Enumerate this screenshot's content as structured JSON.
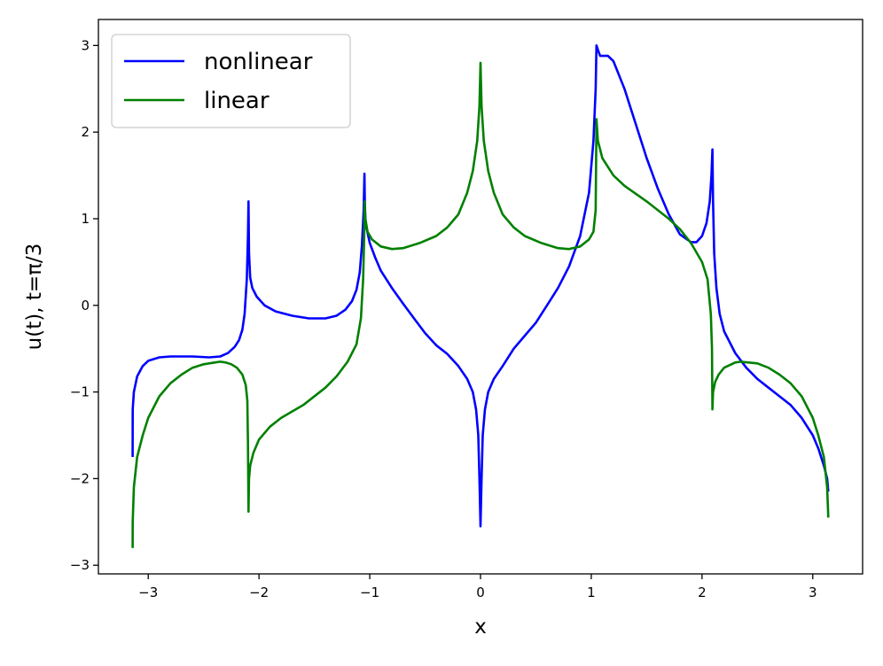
{
  "chart_data": {
    "type": "line",
    "xlabel": "x",
    "ylabel": "u(t), t=π/3",
    "xlim": [
      -3.45,
      3.45
    ],
    "ylim": [
      -3.1,
      3.3
    ],
    "xticks": [
      -3,
      -2,
      -1,
      0,
      1,
      2,
      3
    ],
    "yticks": [
      -3,
      -2,
      -1,
      0,
      1,
      2,
      3
    ],
    "xtick_labels": [
      "−3",
      "−2",
      "−1",
      "0",
      "1",
      "2",
      "3"
    ],
    "ytick_labels": [
      "−3",
      "−2",
      "−1",
      "0",
      "1",
      "2",
      "3"
    ],
    "grid": false,
    "legend": {
      "position": "top-left",
      "entries": [
        {
          "name": "nonlinear",
          "color": "#0000ff"
        },
        {
          "name": "linear",
          "color": "#008000"
        }
      ]
    },
    "series": [
      {
        "name": "nonlinear",
        "color": "#0000ff",
        "points": [
          [
            -3.141,
            -1.75
          ],
          [
            -3.14,
            -1.2
          ],
          [
            -3.13,
            -1.0
          ],
          [
            -3.1,
            -0.82
          ],
          [
            -3.05,
            -0.7
          ],
          [
            -3.0,
            -0.64
          ],
          [
            -2.9,
            -0.6
          ],
          [
            -2.8,
            -0.59
          ],
          [
            -2.6,
            -0.59
          ],
          [
            -2.45,
            -0.6
          ],
          [
            -2.35,
            -0.59
          ],
          [
            -2.28,
            -0.55
          ],
          [
            -2.22,
            -0.48
          ],
          [
            -2.18,
            -0.4
          ],
          [
            -2.15,
            -0.28
          ],
          [
            -2.13,
            -0.1
          ],
          [
            -2.11,
            0.3
          ],
          [
            -2.1,
            0.8
          ],
          [
            -2.095,
            1.2
          ],
          [
            -2.09,
            0.6
          ],
          [
            -2.08,
            0.32
          ],
          [
            -2.06,
            0.2
          ],
          [
            -2.02,
            0.1
          ],
          [
            -1.95,
            0.0
          ],
          [
            -1.85,
            -0.07
          ],
          [
            -1.7,
            -0.12
          ],
          [
            -1.55,
            -0.15
          ],
          [
            -1.4,
            -0.15
          ],
          [
            -1.3,
            -0.12
          ],
          [
            -1.22,
            -0.05
          ],
          [
            -1.16,
            0.05
          ],
          [
            -1.12,
            0.18
          ],
          [
            -1.09,
            0.38
          ],
          [
            -1.07,
            0.7
          ],
          [
            -1.055,
            1.1
          ],
          [
            -1.048,
            1.52
          ],
          [
            -1.045,
            1.2
          ],
          [
            -1.04,
            1.0
          ],
          [
            -1.03,
            0.9
          ],
          [
            -1.0,
            0.72
          ],
          [
            -0.95,
            0.55
          ],
          [
            -0.9,
            0.4
          ],
          [
            -0.8,
            0.2
          ],
          [
            -0.7,
            0.02
          ],
          [
            -0.6,
            -0.15
          ],
          [
            -0.5,
            -0.32
          ],
          [
            -0.4,
            -0.46
          ],
          [
            -0.3,
            -0.56
          ],
          [
            -0.2,
            -0.7
          ],
          [
            -0.12,
            -0.85
          ],
          [
            -0.07,
            -1.0
          ],
          [
            -0.04,
            -1.2
          ],
          [
            -0.02,
            -1.5
          ],
          [
            -0.01,
            -2.0
          ],
          [
            0.0,
            -2.55
          ],
          [
            0.01,
            -2.0
          ],
          [
            0.02,
            -1.5
          ],
          [
            0.04,
            -1.2
          ],
          [
            0.07,
            -1.0
          ],
          [
            0.12,
            -0.85
          ],
          [
            0.2,
            -0.7
          ],
          [
            0.3,
            -0.5
          ],
          [
            0.4,
            -0.35
          ],
          [
            0.5,
            -0.2
          ],
          [
            0.6,
            0.0
          ],
          [
            0.7,
            0.2
          ],
          [
            0.8,
            0.45
          ],
          [
            0.9,
            0.8
          ],
          [
            0.98,
            1.3
          ],
          [
            1.02,
            1.9
          ],
          [
            1.04,
            2.5
          ],
          [
            1.047,
            3.0
          ],
          [
            1.06,
            2.95
          ],
          [
            1.08,
            2.88
          ],
          [
            1.15,
            2.88
          ],
          [
            1.2,
            2.82
          ],
          [
            1.3,
            2.5
          ],
          [
            1.4,
            2.1
          ],
          [
            1.5,
            1.7
          ],
          [
            1.6,
            1.35
          ],
          [
            1.7,
            1.05
          ],
          [
            1.8,
            0.82
          ],
          [
            1.9,
            0.73
          ],
          [
            1.95,
            0.73
          ],
          [
            2.0,
            0.8
          ],
          [
            2.04,
            0.95
          ],
          [
            2.07,
            1.2
          ],
          [
            2.085,
            1.5
          ],
          [
            2.094,
            1.8
          ],
          [
            2.1,
            1.2
          ],
          [
            2.11,
            0.6
          ],
          [
            2.13,
            0.2
          ],
          [
            2.16,
            -0.1
          ],
          [
            2.2,
            -0.3
          ],
          [
            2.3,
            -0.55
          ],
          [
            2.4,
            -0.72
          ],
          [
            2.5,
            -0.85
          ],
          [
            2.6,
            -0.95
          ],
          [
            2.7,
            -1.05
          ],
          [
            2.8,
            -1.15
          ],
          [
            2.9,
            -1.3
          ],
          [
            3.0,
            -1.5
          ],
          [
            3.05,
            -1.65
          ],
          [
            3.1,
            -1.85
          ],
          [
            3.13,
            -2.0
          ],
          [
            3.14,
            -2.15
          ]
        ]
      },
      {
        "name": "linear",
        "color": "#008000",
        "points": [
          [
            -3.141,
            -2.8
          ],
          [
            -3.14,
            -2.5
          ],
          [
            -3.13,
            -2.1
          ],
          [
            -3.1,
            -1.75
          ],
          [
            -3.05,
            -1.5
          ],
          [
            -3.0,
            -1.3
          ],
          [
            -2.9,
            -1.05
          ],
          [
            -2.8,
            -0.9
          ],
          [
            -2.7,
            -0.8
          ],
          [
            -2.6,
            -0.72
          ],
          [
            -2.5,
            -0.68
          ],
          [
            -2.4,
            -0.66
          ],
          [
            -2.35,
            -0.65
          ],
          [
            -2.3,
            -0.66
          ],
          [
            -2.25,
            -0.68
          ],
          [
            -2.2,
            -0.72
          ],
          [
            -2.15,
            -0.8
          ],
          [
            -2.12,
            -0.92
          ],
          [
            -2.105,
            -1.1
          ],
          [
            -2.1,
            -1.6
          ],
          [
            -2.095,
            -2.38
          ],
          [
            -2.09,
            -2.0
          ],
          [
            -2.08,
            -1.85
          ],
          [
            -2.05,
            -1.7
          ],
          [
            -2.0,
            -1.55
          ],
          [
            -1.9,
            -1.4
          ],
          [
            -1.8,
            -1.3
          ],
          [
            -1.6,
            -1.15
          ],
          [
            -1.4,
            -0.95
          ],
          [
            -1.3,
            -0.82
          ],
          [
            -1.2,
            -0.65
          ],
          [
            -1.12,
            -0.45
          ],
          [
            -1.08,
            -0.15
          ],
          [
            -1.06,
            0.3
          ],
          [
            -1.05,
            0.8
          ],
          [
            -1.047,
            1.2
          ],
          [
            -1.04,
            1.0
          ],
          [
            -1.02,
            0.85
          ],
          [
            -0.98,
            0.76
          ],
          [
            -0.9,
            0.68
          ],
          [
            -0.8,
            0.65
          ],
          [
            -0.7,
            0.66
          ],
          [
            -0.55,
            0.72
          ],
          [
            -0.4,
            0.8
          ],
          [
            -0.3,
            0.9
          ],
          [
            -0.2,
            1.05
          ],
          [
            -0.12,
            1.3
          ],
          [
            -0.07,
            1.55
          ],
          [
            -0.03,
            1.9
          ],
          [
            -0.01,
            2.3
          ],
          [
            0.0,
            2.8
          ],
          [
            0.01,
            2.3
          ],
          [
            0.03,
            1.9
          ],
          [
            0.07,
            1.55
          ],
          [
            0.12,
            1.3
          ],
          [
            0.2,
            1.05
          ],
          [
            0.3,
            0.9
          ],
          [
            0.4,
            0.8
          ],
          [
            0.55,
            0.72
          ],
          [
            0.7,
            0.66
          ],
          [
            0.8,
            0.65
          ],
          [
            0.9,
            0.68
          ],
          [
            0.98,
            0.76
          ],
          [
            1.02,
            0.85
          ],
          [
            1.04,
            1.1
          ],
          [
            1.047,
            2.15
          ],
          [
            1.06,
            1.9
          ],
          [
            1.1,
            1.7
          ],
          [
            1.2,
            1.5
          ],
          [
            1.3,
            1.38
          ],
          [
            1.5,
            1.2
          ],
          [
            1.7,
            1.0
          ],
          [
            1.8,
            0.88
          ],
          [
            1.9,
            0.72
          ],
          [
            2.0,
            0.5
          ],
          [
            2.05,
            0.3
          ],
          [
            2.08,
            -0.1
          ],
          [
            2.09,
            -0.5
          ],
          [
            2.094,
            -1.2
          ],
          [
            2.1,
            -1.0
          ],
          [
            2.12,
            -0.88
          ],
          [
            2.15,
            -0.8
          ],
          [
            2.2,
            -0.72
          ],
          [
            2.3,
            -0.66
          ],
          [
            2.35,
            -0.65
          ],
          [
            2.5,
            -0.67
          ],
          [
            2.6,
            -0.72
          ],
          [
            2.7,
            -0.8
          ],
          [
            2.8,
            -0.9
          ],
          [
            2.9,
            -1.05
          ],
          [
            3.0,
            -1.3
          ],
          [
            3.05,
            -1.5
          ],
          [
            3.1,
            -1.75
          ],
          [
            3.13,
            -2.1
          ],
          [
            3.14,
            -2.45
          ]
        ]
      }
    ]
  }
}
